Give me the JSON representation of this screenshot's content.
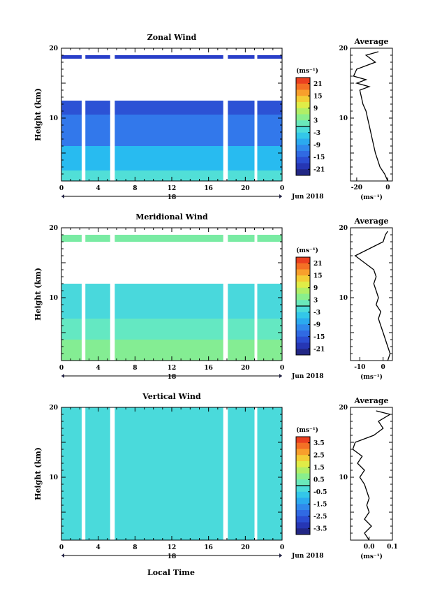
{
  "date_label": "Jun 2018",
  "xlabel": "Local Time",
  "x_ticks": [
    "0",
    "4",
    "8",
    "12",
    "16",
    "20",
    "0"
  ],
  "day_label": "18",
  "ylabel": "Height (km)",
  "y_ticks": [
    "20",
    "10"
  ],
  "avg_title": "Average",
  "unit": "(ms⁻¹)",
  "chart_data": [
    {
      "type": "heatmap",
      "title": "Zonal Wind",
      "xlim": [
        0,
        24
      ],
      "ylim": [
        1,
        20
      ],
      "colorbar": {
        "ticks": [
          "21",
          "15",
          "9",
          "3",
          "-3",
          "-9",
          "-15",
          "-21"
        ],
        "range": [
          -24,
          24
        ]
      },
      "gaps_hours": [
        [
          2.2,
          2.6
        ],
        [
          5.3,
          5.8
        ],
        [
          17.6,
          18.1
        ],
        [
          21.0,
          21.3
        ]
      ],
      "layers": [
        {
          "y0": 1.0,
          "y1": 2.5,
          "value": -1
        },
        {
          "y0": 2.5,
          "y1": 6.0,
          "value": -6
        },
        {
          "y0": 6.0,
          "y1": 10.5,
          "value": -12
        },
        {
          "y0": 10.5,
          "y1": 12.5,
          "value": -16
        },
        {
          "y0": 18.5,
          "y1": 19.0,
          "value": -18
        }
      ],
      "average": {
        "xlim": [
          -24,
          3
        ],
        "x_ticks": [
          "-20",
          "0"
        ],
        "profile": [
          [
            0,
            1
          ],
          [
            -2,
            2
          ],
          [
            -5,
            3
          ],
          [
            -8,
            5
          ],
          [
            -10,
            7
          ],
          [
            -12,
            9
          ],
          [
            -13,
            10
          ],
          [
            -14,
            11
          ],
          [
            -16,
            12
          ],
          [
            -17,
            13
          ],
          [
            -18,
            14
          ],
          [
            -12,
            14.5
          ],
          [
            -20,
            15
          ],
          [
            -14,
            15.5
          ],
          [
            -22,
            16
          ],
          [
            -20,
            17
          ],
          [
            -8,
            18
          ],
          [
            -14,
            19
          ],
          [
            -6,
            19.5
          ]
        ]
      }
    },
    {
      "type": "heatmap",
      "title": "Meridional Wind",
      "xlim": [
        0,
        24
      ],
      "ylim": [
        1,
        20
      ],
      "colorbar": {
        "ticks": [
          "21",
          "15",
          "9",
          "3",
          "-3",
          "-9",
          "-15",
          "-21"
        ],
        "range": [
          -24,
          24
        ]
      },
      "gaps_hours": [
        [
          2.2,
          2.6
        ],
        [
          5.3,
          5.8
        ],
        [
          17.6,
          18.1
        ],
        [
          21.0,
          21.3
        ]
      ],
      "layers": [
        {
          "y0": 1.0,
          "y1": 4.0,
          "value": 4
        },
        {
          "y0": 4.0,
          "y1": 7.0,
          "value": 1
        },
        {
          "y0": 7.0,
          "y1": 12.0,
          "value": -2
        },
        {
          "y0": 18.0,
          "y1": 19.0,
          "value": 3
        }
      ],
      "average": {
        "xlim": [
          -14,
          4
        ],
        "x_ticks": [
          "-10",
          "0"
        ],
        "profile": [
          [
            2,
            1
          ],
          [
            3,
            2
          ],
          [
            2,
            3
          ],
          [
            1,
            4
          ],
          [
            0,
            5
          ],
          [
            -1,
            6
          ],
          [
            -2,
            7
          ],
          [
            -1,
            8
          ],
          [
            -3,
            9
          ],
          [
            -2,
            10
          ],
          [
            -3,
            11
          ],
          [
            -4,
            12
          ],
          [
            -3,
            13
          ],
          [
            -4,
            14
          ],
          [
            -8,
            15
          ],
          [
            -12,
            16
          ],
          [
            -6,
            17
          ],
          [
            0,
            18
          ],
          [
            1,
            19
          ],
          [
            2,
            19.5
          ]
        ]
      }
    },
    {
      "type": "heatmap",
      "title": "Vertical Wind",
      "xlim": [
        0,
        24
      ],
      "ylim": [
        1,
        20
      ],
      "colorbar": {
        "ticks": [
          "3.5",
          "2.5",
          "1.5",
          "0.5",
          "-0.5",
          "-1.5",
          "-2.5",
          "-3.5"
        ],
        "range": [
          -4,
          4
        ]
      },
      "gaps_hours": [
        [
          2.2,
          2.6
        ],
        [
          5.3,
          5.8
        ],
        [
          17.6,
          18.1
        ],
        [
          21.0,
          21.3
        ]
      ],
      "layers": [
        {
          "y0": 1.0,
          "y1": 20.0,
          "value": -0.3
        }
      ],
      "average": {
        "xlim": [
          -0.08,
          0.1
        ],
        "x_ticks": [
          "0.0",
          "0.1"
        ],
        "profile": [
          [
            0.0,
            1
          ],
          [
            -0.02,
            2
          ],
          [
            0.01,
            3
          ],
          [
            -0.02,
            4
          ],
          [
            0.0,
            5
          ],
          [
            -0.01,
            6
          ],
          [
            0.0,
            7
          ],
          [
            -0.01,
            8
          ],
          [
            -0.02,
            9
          ],
          [
            -0.04,
            10
          ],
          [
            -0.02,
            11
          ],
          [
            -0.05,
            12
          ],
          [
            -0.03,
            13
          ],
          [
            -0.07,
            14
          ],
          [
            -0.06,
            15
          ],
          [
            0.02,
            16
          ],
          [
            0.06,
            17
          ],
          [
            0.04,
            18
          ],
          [
            0.09,
            19
          ],
          [
            0.03,
            19.5
          ]
        ]
      }
    }
  ]
}
